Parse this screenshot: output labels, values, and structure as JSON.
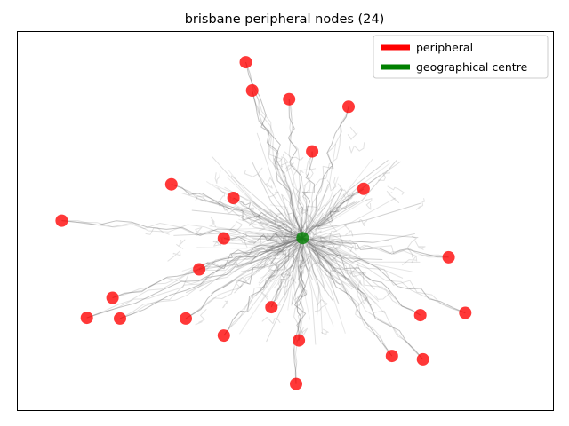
{
  "chart_data": {
    "type": "scatter",
    "title": "brisbane peripheral nodes (24)",
    "xlabel": "",
    "ylabel": "",
    "axes_ticks": false,
    "grid": false,
    "legend": {
      "placement": "top-right",
      "entries": [
        {
          "label": "peripheral",
          "color": "#ff0000"
        },
        {
          "label": "geographical centre",
          "color": "#008000"
        }
      ]
    },
    "xlim": [
      0,
      100
    ],
    "ylim": [
      0,
      100
    ],
    "center": {
      "x": 53.2,
      "y": 45.5,
      "color": "#008000"
    },
    "series": [
      {
        "name": "peripheral",
        "color": "#ff0000",
        "points": [
          [
            42.6,
            92.0
          ],
          [
            43.8,
            84.5
          ],
          [
            50.7,
            82.2
          ],
          [
            61.8,
            80.2
          ],
          [
            55.0,
            68.4
          ],
          [
            28.7,
            59.7
          ],
          [
            40.3,
            56.1
          ],
          [
            64.6,
            58.5
          ],
          [
            8.2,
            50.1
          ],
          [
            38.5,
            45.4
          ],
          [
            80.5,
            40.4
          ],
          [
            33.9,
            37.2
          ],
          [
            17.7,
            29.7
          ],
          [
            47.4,
            27.2
          ],
          [
            75.2,
            25.1
          ],
          [
            83.6,
            25.7
          ],
          [
            12.9,
            24.4
          ],
          [
            19.1,
            24.2
          ],
          [
            31.4,
            24.2
          ],
          [
            38.5,
            19.7
          ],
          [
            52.5,
            18.4
          ],
          [
            69.9,
            14.3
          ],
          [
            75.7,
            13.4
          ],
          [
            52.0,
            6.9
          ]
        ]
      }
    ]
  }
}
